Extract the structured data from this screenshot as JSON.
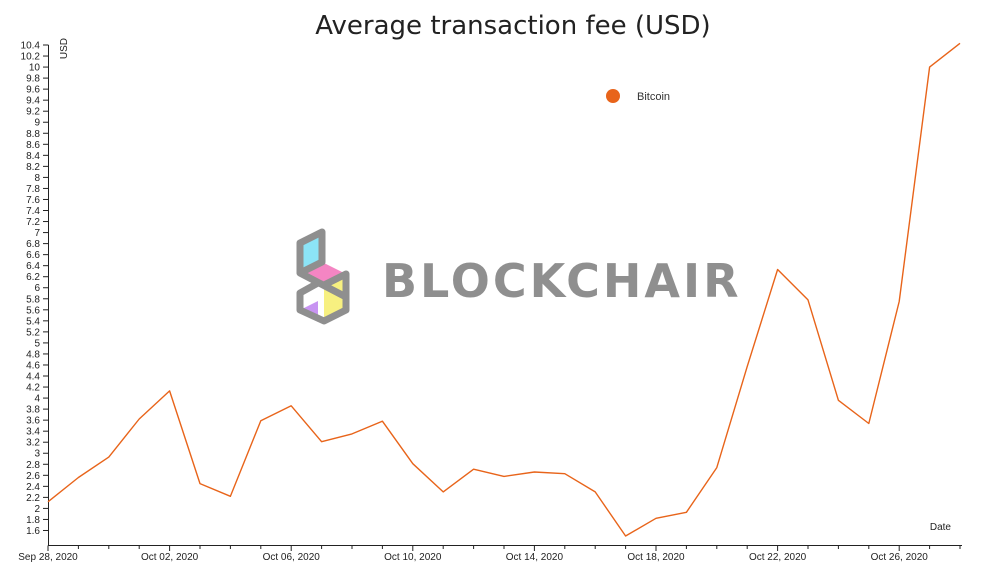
{
  "chart_data": {
    "type": "line",
    "title": "Average transaction fee (USD)",
    "xlabel": "Date",
    "ylabel": "USD",
    "ylim": [
      1.5,
      10.4
    ],
    "y_ticks": [
      1.6,
      1.8,
      2,
      2.2,
      2.4,
      2.6,
      2.8,
      3,
      3.2,
      3.4,
      3.6,
      3.8,
      4,
      4.2,
      4.4,
      4.6,
      4.8,
      5,
      5.2,
      5.4,
      5.6,
      5.8,
      6,
      6.2,
      6.4,
      6.6,
      6.8,
      7,
      7.2,
      7.4,
      7.6,
      7.8,
      8,
      8.2,
      8.4,
      8.6,
      8.8,
      9,
      9.2,
      9.4,
      9.6,
      9.8,
      10,
      10.2,
      10.4
    ],
    "x_tick_labels": [
      "Sep 28, 2020",
      "Oct 02, 2020",
      "Oct 06, 2020",
      "Oct 10, 2020",
      "Oct 14, 2020",
      "Oct 18, 2020",
      "Oct 22, 2020",
      "Oct 26, 2020"
    ],
    "x_range": [
      "Sep 28, 2020",
      "Oct 28, 2020"
    ],
    "grid": false,
    "legend_position": "top-right",
    "series": [
      {
        "name": "Bitcoin",
        "color": "#e8641a",
        "x": [
          "2020-09-28",
          "2020-09-29",
          "2020-09-30",
          "2020-10-01",
          "2020-10-02",
          "2020-10-03",
          "2020-10-04",
          "2020-10-05",
          "2020-10-06",
          "2020-10-07",
          "2020-10-08",
          "2020-10-09",
          "2020-10-10",
          "2020-10-11",
          "2020-10-12",
          "2020-10-13",
          "2020-10-14",
          "2020-10-15",
          "2020-10-16",
          "2020-10-17",
          "2020-10-18",
          "2020-10-19",
          "2020-10-20",
          "2020-10-21",
          "2020-10-22",
          "2020-10-23",
          "2020-10-24",
          "2020-10-25",
          "2020-10-26",
          "2020-10-27",
          "2020-10-28"
        ],
        "values": [
          2.12,
          2.56,
          2.93,
          3.62,
          4.13,
          2.45,
          2.22,
          3.59,
          3.86,
          3.21,
          3.35,
          3.58,
          2.81,
          2.3,
          2.71,
          2.58,
          2.66,
          2.63,
          2.3,
          1.5,
          1.82,
          1.93,
          2.74,
          4.57,
          6.33,
          5.78,
          3.96,
          3.54,
          5.75,
          10.0,
          10.43
        ]
      }
    ]
  },
  "watermark": {
    "text": "BLOCKCHAIR",
    "colors": [
      "#86e3f7",
      "#f47fc0",
      "#f7f07a",
      "#c68ff2",
      "#8a8a8a"
    ]
  }
}
